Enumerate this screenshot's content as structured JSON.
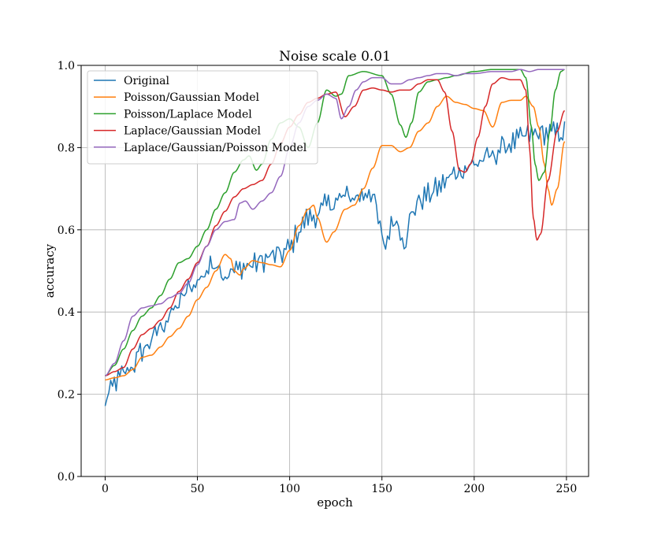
{
  "chart_data": {
    "type": "line",
    "title": "Noise scale 0.01",
    "xlabel": "epoch",
    "ylabel": "accuracy",
    "xlim": [
      -13,
      262
    ],
    "ylim": [
      0.0,
      1.0
    ],
    "xticks": [
      0,
      50,
      100,
      150,
      200,
      250
    ],
    "yticks": [
      0.0,
      0.2,
      0.4,
      0.6,
      0.8,
      1.0
    ],
    "xtick_labels": [
      "0",
      "50",
      "100",
      "150",
      "200",
      "250"
    ],
    "ytick_labels": [
      "0.0",
      "0.2",
      "0.4",
      "0.6",
      "0.8",
      "1.0"
    ],
    "grid": true,
    "legend_position": "top-left",
    "series": [
      {
        "name": "Original",
        "color": "#1f77b4",
        "noisy": true,
        "points": [
          [
            0,
            0.175
          ],
          [
            3,
            0.22
          ],
          [
            6,
            0.23
          ],
          [
            10,
            0.25
          ],
          [
            15,
            0.27
          ],
          [
            20,
            0.305
          ],
          [
            25,
            0.33
          ],
          [
            30,
            0.365
          ],
          [
            35,
            0.39
          ],
          [
            40,
            0.42
          ],
          [
            45,
            0.455
          ],
          [
            50,
            0.475
          ],
          [
            55,
            0.5
          ],
          [
            60,
            0.525
          ],
          [
            65,
            0.49
          ],
          [
            70,
            0.5
          ],
          [
            75,
            0.51
          ],
          [
            80,
            0.515
          ],
          [
            85,
            0.525
          ],
          [
            90,
            0.535
          ],
          [
            95,
            0.54
          ],
          [
            100,
            0.555
          ],
          [
            105,
            0.6
          ],
          [
            110,
            0.63
          ],
          [
            115,
            0.635
          ],
          [
            120,
            0.66
          ],
          [
            125,
            0.67
          ],
          [
            130,
            0.68
          ],
          [
            135,
            0.68
          ],
          [
            140,
            0.685
          ],
          [
            143,
            0.7
          ],
          [
            146,
            0.67
          ],
          [
            148,
            0.62
          ],
          [
            150,
            0.58
          ],
          [
            152,
            0.56
          ],
          [
            154,
            0.6
          ],
          [
            157,
            0.63
          ],
          [
            160,
            0.6
          ],
          [
            163,
            0.57
          ],
          [
            166,
            0.64
          ],
          [
            170,
            0.67
          ],
          [
            175,
            0.685
          ],
          [
            180,
            0.7
          ],
          [
            185,
            0.72
          ],
          [
            190,
            0.74
          ],
          [
            195,
            0.75
          ],
          [
            200,
            0.76
          ],
          [
            205,
            0.77
          ],
          [
            210,
            0.78
          ],
          [
            215,
            0.8
          ],
          [
            220,
            0.81
          ],
          [
            225,
            0.82
          ],
          [
            230,
            0.83
          ],
          [
            235,
            0.835
          ],
          [
            240,
            0.835
          ],
          [
            245,
            0.835
          ],
          [
            249,
            0.838
          ]
        ]
      },
      {
        "name": "Poisson/Gaussian Model",
        "color": "#ff7f0e",
        "noisy": false,
        "points": [
          [
            0,
            0.235
          ],
          [
            5,
            0.24
          ],
          [
            10,
            0.245
          ],
          [
            15,
            0.26
          ],
          [
            20,
            0.29
          ],
          [
            25,
            0.295
          ],
          [
            30,
            0.315
          ],
          [
            35,
            0.34
          ],
          [
            40,
            0.36
          ],
          [
            45,
            0.39
          ],
          [
            50,
            0.43
          ],
          [
            55,
            0.46
          ],
          [
            60,
            0.5
          ],
          [
            65,
            0.54
          ],
          [
            68,
            0.53
          ],
          [
            70,
            0.5
          ],
          [
            73,
            0.49
          ],
          [
            75,
            0.505
          ],
          [
            80,
            0.525
          ],
          [
            85,
            0.52
          ],
          [
            90,
            0.515
          ],
          [
            95,
            0.51
          ],
          [
            100,
            0.55
          ],
          [
            105,
            0.61
          ],
          [
            110,
            0.65
          ],
          [
            113,
            0.66
          ],
          [
            115,
            0.63
          ],
          [
            120,
            0.57
          ],
          [
            124,
            0.595
          ],
          [
            130,
            0.65
          ],
          [
            135,
            0.66
          ],
          [
            140,
            0.7
          ],
          [
            145,
            0.75
          ],
          [
            150,
            0.805
          ],
          [
            155,
            0.805
          ],
          [
            160,
            0.79
          ],
          [
            165,
            0.8
          ],
          [
            170,
            0.84
          ],
          [
            175,
            0.86
          ],
          [
            180,
            0.9
          ],
          [
            185,
            0.925
          ],
          [
            190,
            0.91
          ],
          [
            195,
            0.905
          ],
          [
            200,
            0.895
          ],
          [
            205,
            0.89
          ],
          [
            210,
            0.85
          ],
          [
            215,
            0.91
          ],
          [
            220,
            0.915
          ],
          [
            225,
            0.915
          ],
          [
            228,
            0.925
          ],
          [
            232,
            0.9
          ],
          [
            235,
            0.85
          ],
          [
            238,
            0.76
          ],
          [
            240,
            0.7
          ],
          [
            242,
            0.66
          ],
          [
            245,
            0.7
          ],
          [
            249,
            0.815
          ]
        ]
      },
      {
        "name": "Poisson/Laplace Model",
        "color": "#2ca02c",
        "noisy": false,
        "points": [
          [
            0,
            0.245
          ],
          [
            5,
            0.27
          ],
          [
            10,
            0.31
          ],
          [
            15,
            0.355
          ],
          [
            20,
            0.39
          ],
          [
            25,
            0.41
          ],
          [
            30,
            0.44
          ],
          [
            35,
            0.48
          ],
          [
            40,
            0.52
          ],
          [
            45,
            0.53
          ],
          [
            50,
            0.56
          ],
          [
            55,
            0.6
          ],
          [
            60,
            0.65
          ],
          [
            65,
            0.69
          ],
          [
            70,
            0.74
          ],
          [
            75,
            0.77
          ],
          [
            78,
            0.78
          ],
          [
            82,
            0.745
          ],
          [
            85,
            0.76
          ],
          [
            90,
            0.82
          ],
          [
            95,
            0.86
          ],
          [
            100,
            0.87
          ],
          [
            105,
            0.85
          ],
          [
            110,
            0.8
          ],
          [
            115,
            0.86
          ],
          [
            120,
            0.94
          ],
          [
            125,
            0.925
          ],
          [
            128,
            0.93
          ],
          [
            132,
            0.975
          ],
          [
            140,
            0.985
          ],
          [
            150,
            0.975
          ],
          [
            155,
            0.93
          ],
          [
            160,
            0.855
          ],
          [
            163,
            0.825
          ],
          [
            166,
            0.86
          ],
          [
            170,
            0.935
          ],
          [
            175,
            0.96
          ],
          [
            180,
            0.965
          ],
          [
            185,
            0.97
          ],
          [
            190,
            0.975
          ],
          [
            200,
            0.985
          ],
          [
            210,
            0.99
          ],
          [
            220,
            0.99
          ],
          [
            225,
            0.99
          ],
          [
            228,
            0.97
          ],
          [
            231,
            0.85
          ],
          [
            233,
            0.76
          ],
          [
            235,
            0.72
          ],
          [
            238,
            0.74
          ],
          [
            241,
            0.84
          ],
          [
            244,
            0.94
          ],
          [
            247,
            0.985
          ],
          [
            249,
            0.99
          ]
        ]
      },
      {
        "name": "Laplace/Gaussian Model",
        "color": "#d62728",
        "noisy": false,
        "points": [
          [
            0,
            0.245
          ],
          [
            5,
            0.255
          ],
          [
            10,
            0.265
          ],
          [
            15,
            0.31
          ],
          [
            20,
            0.345
          ],
          [
            25,
            0.36
          ],
          [
            30,
            0.38
          ],
          [
            35,
            0.41
          ],
          [
            40,
            0.45
          ],
          [
            45,
            0.48
          ],
          [
            50,
            0.52
          ],
          [
            55,
            0.56
          ],
          [
            60,
            0.61
          ],
          [
            65,
            0.645
          ],
          [
            70,
            0.68
          ],
          [
            75,
            0.7
          ],
          [
            80,
            0.71
          ],
          [
            85,
            0.72
          ],
          [
            90,
            0.76
          ],
          [
            95,
            0.81
          ],
          [
            100,
            0.85
          ],
          [
            105,
            0.88
          ],
          [
            110,
            0.91
          ],
          [
            115,
            0.92
          ],
          [
            120,
            0.93
          ],
          [
            125,
            0.935
          ],
          [
            130,
            0.875
          ],
          [
            135,
            0.9
          ],
          [
            140,
            0.94
          ],
          [
            145,
            0.945
          ],
          [
            150,
            0.94
          ],
          [
            155,
            0.935
          ],
          [
            160,
            0.94
          ],
          [
            165,
            0.94
          ],
          [
            170,
            0.955
          ],
          [
            175,
            0.965
          ],
          [
            180,
            0.965
          ],
          [
            184,
            0.935
          ],
          [
            188,
            0.84
          ],
          [
            192,
            0.745
          ],
          [
            195,
            0.74
          ],
          [
            198,
            0.76
          ],
          [
            202,
            0.825
          ],
          [
            206,
            0.9
          ],
          [
            210,
            0.955
          ],
          [
            215,
            0.97
          ],
          [
            220,
            0.965
          ],
          [
            225,
            0.965
          ],
          [
            228,
            0.94
          ],
          [
            230,
            0.8
          ],
          [
            232,
            0.63
          ],
          [
            234,
            0.575
          ],
          [
            236,
            0.59
          ],
          [
            240,
            0.72
          ],
          [
            245,
            0.84
          ],
          [
            249,
            0.89
          ]
        ]
      },
      {
        "name": "Laplace/Gaussian/Poisson Model",
        "color": "#9467bd",
        "noisy": false,
        "points": [
          [
            0,
            0.245
          ],
          [
            5,
            0.275
          ],
          [
            10,
            0.33
          ],
          [
            15,
            0.39
          ],
          [
            20,
            0.41
          ],
          [
            25,
            0.415
          ],
          [
            30,
            0.42
          ],
          [
            35,
            0.435
          ],
          [
            40,
            0.445
          ],
          [
            45,
            0.47
          ],
          [
            50,
            0.515
          ],
          [
            55,
            0.56
          ],
          [
            60,
            0.6
          ],
          [
            65,
            0.62
          ],
          [
            70,
            0.625
          ],
          [
            73,
            0.665
          ],
          [
            76,
            0.67
          ],
          [
            80,
            0.65
          ],
          [
            85,
            0.67
          ],
          [
            90,
            0.69
          ],
          [
            95,
            0.73
          ],
          [
            100,
            0.8
          ],
          [
            105,
            0.86
          ],
          [
            110,
            0.9
          ],
          [
            115,
            0.915
          ],
          [
            120,
            0.93
          ],
          [
            125,
            0.92
          ],
          [
            128,
            0.87
          ],
          [
            132,
            0.9
          ],
          [
            136,
            0.94
          ],
          [
            140,
            0.96
          ],
          [
            145,
            0.97
          ],
          [
            150,
            0.97
          ],
          [
            155,
            0.955
          ],
          [
            160,
            0.955
          ],
          [
            165,
            0.965
          ],
          [
            170,
            0.97
          ],
          [
            175,
            0.975
          ],
          [
            180,
            0.98
          ],
          [
            185,
            0.98
          ],
          [
            190,
            0.975
          ],
          [
            195,
            0.98
          ],
          [
            200,
            0.98
          ],
          [
            210,
            0.985
          ],
          [
            220,
            0.985
          ],
          [
            225,
            0.99
          ],
          [
            230,
            0.985
          ],
          [
            235,
            0.99
          ],
          [
            240,
            0.99
          ],
          [
            245,
            0.99
          ],
          [
            249,
            0.99
          ]
        ]
      }
    ]
  }
}
